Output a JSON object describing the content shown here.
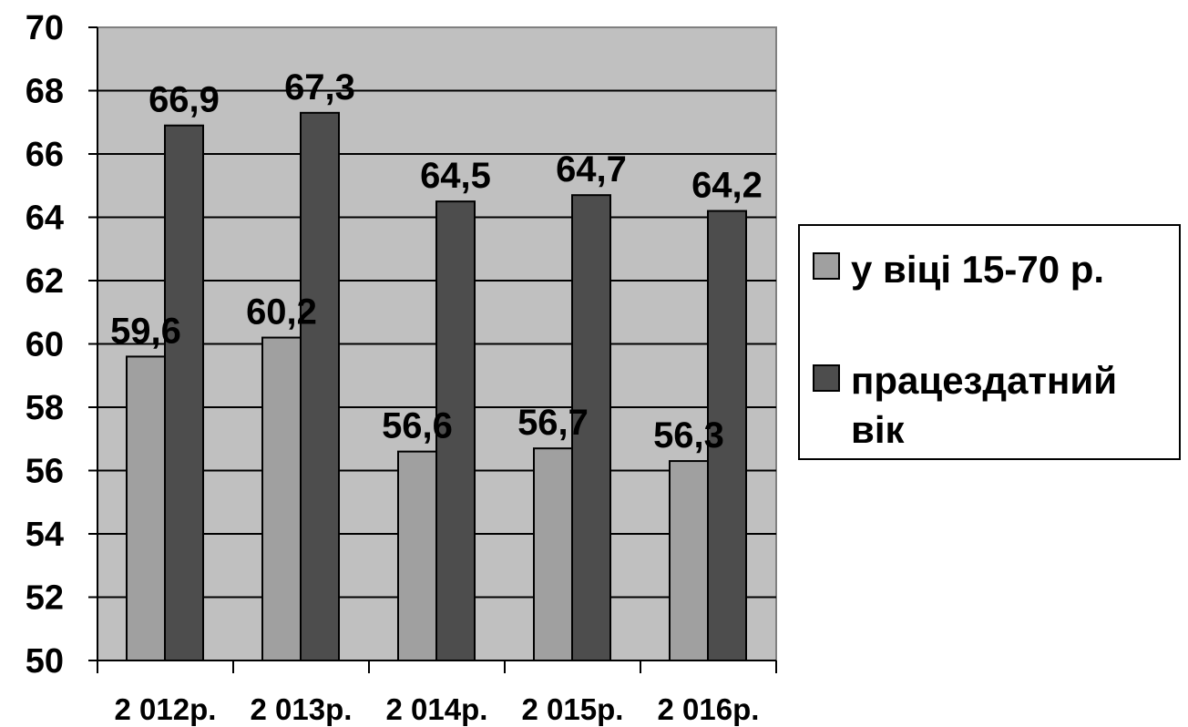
{
  "chart_data": {
    "type": "bar",
    "title": "",
    "xlabel": "",
    "ylabel": "",
    "categories": [
      "2 012р.",
      "2 013р.",
      "2 014р.",
      "2 015р.",
      "2 016р."
    ],
    "series": [
      {
        "name": "у віці 15-70 р.",
        "color": "#a0a0a0",
        "values": [
          59.6,
          60.2,
          56.6,
          56.7,
          56.3
        ],
        "labels": [
          "59,6",
          "60,2",
          "56,6",
          "56,7",
          "56,3"
        ]
      },
      {
        "name": "працездатний вік",
        "name_lines": [
          "працездатний",
          "вік"
        ],
        "color": "#4d4d4d",
        "values": [
          66.9,
          67.3,
          64.5,
          64.7,
          64.2
        ],
        "labels": [
          "66,9",
          "67,3",
          "64,5",
          "64,7",
          "64,2"
        ]
      }
    ],
    "ylim": [
      50,
      70
    ],
    "yticks": [
      "50",
      "52",
      "54",
      "56",
      "58",
      "60",
      "62",
      "64",
      "66",
      "68",
      "70"
    ],
    "grid": true,
    "plot_background": "#c0c0c0",
    "legend_position": "right"
  }
}
